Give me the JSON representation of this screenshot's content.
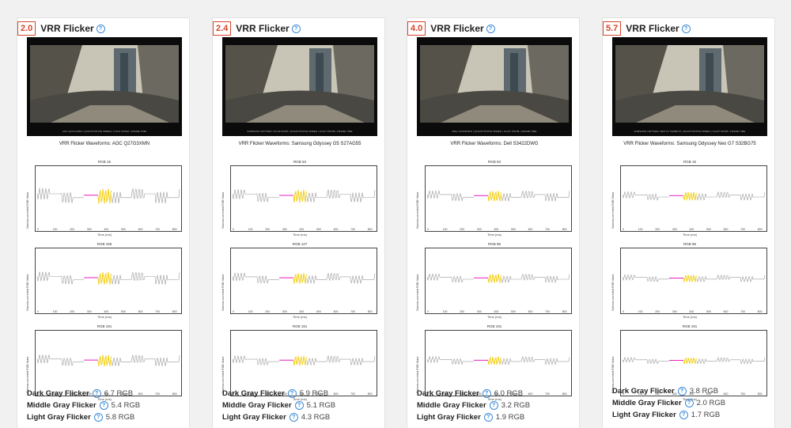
{
  "cards": [
    {
      "score": "2.0",
      "title": "VRR Flicker",
      "caption": "AOC Q27G3XMN | QUANTITATIVE SPEED | LIGHT ZOOM | FRAME TIME",
      "chart_title": "VRR Flicker Waveforms: AOC Q27G3XMN",
      "plots": [
        {
          "label": "RGB 15",
          "ylabel": "Gamma-corrected RGB Value",
          "xlabel": "Time (ms)",
          "yticks": [
            "12",
            "13",
            "14",
            "15",
            "16",
            "17",
            "18",
            "19"
          ],
          "xticks": [
            "0",
            "100",
            "200",
            "300",
            "400",
            "500",
            "600",
            "700",
            "800"
          ]
        },
        {
          "label": "RGB 159",
          "ylabel": "Gamma-corrected RGB Value",
          "xlabel": "Time (ms)",
          "yticks": [
            "156",
            "157",
            "158",
            "159",
            "160",
            "161",
            "162"
          ],
          "xticks": [
            "0",
            "100",
            "200",
            "300",
            "400",
            "500",
            "600",
            "700",
            "800"
          ]
        },
        {
          "label": "RGB 191",
          "ylabel": "Gamma-corrected RGB Value",
          "xlabel": "Time (ms)",
          "yticks": [
            "188",
            "189",
            "190",
            "191",
            "192",
            "193",
            "194"
          ],
          "xticks": [
            "0",
            "100",
            "200",
            "300",
            "400",
            "500",
            "600",
            "700",
            "800"
          ]
        }
      ],
      "stats": [
        {
          "label": "Dark Gray Flicker",
          "value": "6.7 RGB"
        },
        {
          "label": "Middle Gray Flicker",
          "value": "5.4 RGB"
        },
        {
          "label": "Light Gray Flicker",
          "value": "5.8 RGB"
        }
      ]
    },
    {
      "score": "2.4",
      "title": "VRR Flicker",
      "caption": "SAMSUNG ODYSSEY G5 S27AG55 | QUANTITATIVE SPEED | LIGHT ZOOM | FRAME TIME",
      "chart_title": "VRR Flicker Waveforms: Samsung Odyssey G5 S27AG55",
      "plots": [
        {
          "label": "RGB 63",
          "ylabel": "Gamma-corrected RGB Value",
          "xlabel": "Time (ms)",
          "yticks": [
            "60",
            "61",
            "62",
            "63",
            "64",
            "65",
            "66"
          ],
          "xticks": [
            "0",
            "100",
            "200",
            "300",
            "400",
            "500",
            "600",
            "700",
            "800"
          ]
        },
        {
          "label": "RGB 127",
          "ylabel": "Gamma-corrected RGB Value",
          "xlabel": "Time (ms)",
          "yticks": [
            "124",
            "125",
            "126",
            "127",
            "128",
            "129",
            "130"
          ],
          "xticks": [
            "0",
            "100",
            "200",
            "300",
            "400",
            "500",
            "600",
            "700",
            "800"
          ]
        },
        {
          "label": "RGB 191",
          "ylabel": "Gamma-corrected RGB Value",
          "xlabel": "Time (ms)",
          "yticks": [
            "188",
            "189",
            "190",
            "191",
            "192",
            "193",
            "194"
          ],
          "xticks": [
            "0",
            "100",
            "200",
            "300",
            "400",
            "500",
            "600",
            "700",
            "800"
          ]
        }
      ],
      "stats": [
        {
          "label": "Dark Gray Flicker",
          "value": "5.9 RGB"
        },
        {
          "label": "Middle Gray Flicker",
          "value": "5.1 RGB"
        },
        {
          "label": "Light Gray Flicker",
          "value": "4.3 RGB"
        }
      ]
    },
    {
      "score": "4.0",
      "title": "VRR Flicker",
      "caption": "DELL S3422DWG | QUANTITATIVE SPEED | LIGHT ZOOM | FRAME TIME",
      "chart_title": "VRR Flicker Waveforms: Dell S3422DWG",
      "plots": [
        {
          "label": "RGB 63",
          "ylabel": "Gamma-corrected RGB Value",
          "xlabel": "Time (ms)",
          "yticks": [
            "60",
            "61",
            "62",
            "63",
            "64",
            "65",
            "66"
          ],
          "xticks": [
            "0",
            "100",
            "200",
            "300",
            "400",
            "500",
            "600",
            "700",
            "800"
          ]
        },
        {
          "label": "RGB 95",
          "ylabel": "Gamma-corrected RGB Value",
          "xlabel": "Time (ms)",
          "yticks": [
            "92",
            "93",
            "94",
            "95",
            "96",
            "97",
            "98"
          ],
          "xticks": [
            "0",
            "100",
            "200",
            "300",
            "400",
            "500",
            "600",
            "700",
            "800"
          ]
        },
        {
          "label": "RGB 191",
          "ylabel": "Gamma-corrected RGB Value",
          "xlabel": "Time (ms)",
          "yticks": [
            "188",
            "189",
            "190",
            "191",
            "192",
            "193",
            "194"
          ],
          "xticks": [
            "0",
            "100",
            "200",
            "300",
            "400",
            "500",
            "600",
            "700",
            "800"
          ]
        }
      ],
      "stats": [
        {
          "label": "Dark Gray Flicker",
          "value": "6.0 RGB"
        },
        {
          "label": "Middle Gray Flicker",
          "value": "3.2 RGB"
        },
        {
          "label": "Light Gray Flicker",
          "value": "1.9 RGB"
        }
      ]
    },
    {
      "score": "5.7",
      "title": "VRR Flicker",
      "caption": "SAMSUNG ODYSSEY NEO G7 S32BG75 | QUANTITATIVE SPEED | LIGHT ZOOM | FRAME TIME",
      "chart_title": "VRR Flicker Waveforms: Samsung Odyssey Neo G7 S32BG75",
      "plots": [
        {
          "label": "RGB 15",
          "ylabel": "Gamma-corrected RGB Value",
          "xlabel": "Time (ms)",
          "yticks": [
            "12",
            "13",
            "14",
            "15",
            "16",
            "17",
            "18"
          ],
          "xticks": [
            "0",
            "100",
            "200",
            "300",
            "400",
            "500",
            "600",
            "700",
            "800"
          ]
        },
        {
          "label": "RGB 95",
          "ylabel": "Gamma-corrected RGB Value",
          "xlabel": "Time (ms)",
          "yticks": [
            "92",
            "93",
            "94",
            "95",
            "96",
            "97",
            "98"
          ],
          "xticks": [
            "0",
            "100",
            "200",
            "300",
            "400",
            "500",
            "600",
            "700",
            "800"
          ]
        },
        {
          "label": "RGB 191",
          "ylabel": "Gamma-corrected RGB Value",
          "xlabel": "Time (ms)",
          "yticks": [
            "188",
            "189",
            "190",
            "191",
            "192",
            "193",
            "194"
          ],
          "xticks": [
            "0",
            "100",
            "200",
            "300",
            "400",
            "500",
            "600",
            "700",
            "800"
          ]
        }
      ],
      "stats": [
        {
          "label": "Dark Gray Flicker",
          "value": "3.8 RGB"
        },
        {
          "label": "Middle Gray Flicker",
          "value": "2.0 RGB"
        },
        {
          "label": "Light Gray Flicker",
          "value": "1.7 RGB"
        }
      ]
    }
  ],
  "colors": {
    "score_border": "#d6452b",
    "help_icon": "#3a8ad6",
    "trace_gray": "#9a9a9a",
    "trace_magenta": "#e81fc0",
    "trace_yellow": "#f2cf1a"
  },
  "icons": {
    "help": "question-circle-icon"
  }
}
